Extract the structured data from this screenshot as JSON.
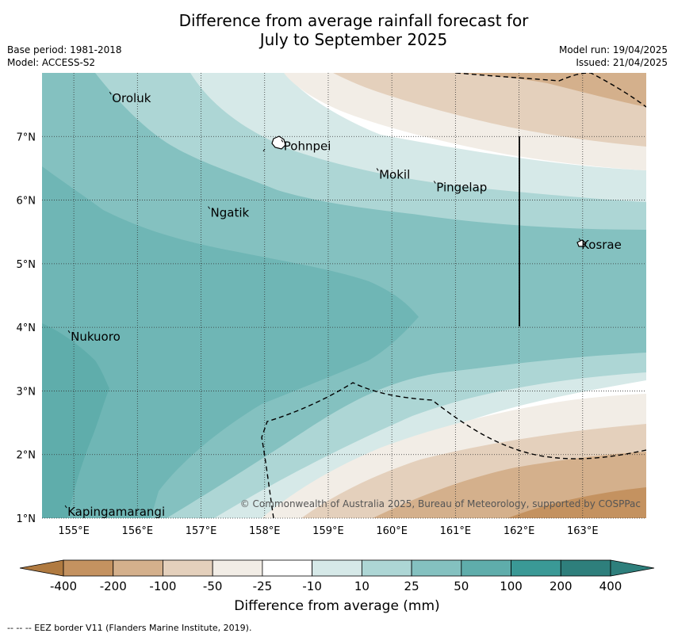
{
  "header": {
    "title_line1": "Difference from average rainfall forecast for",
    "title_line2": "July to September 2025",
    "base_period": "Base period: 1981-2018",
    "model": "Model: ACCESS-S2",
    "model_run": "Model run: 19/04/2025",
    "issued": "Issued: 21/04/2025"
  },
  "map": {
    "lon_ticks": [
      "155°E",
      "156°E",
      "157°E",
      "158°E",
      "159°E",
      "160°E",
      "161°E",
      "162°E",
      "163°E"
    ],
    "lat_ticks": [
      "1°N",
      "2°N",
      "3°N",
      "4°N",
      "5°N",
      "6°N",
      "7°N"
    ],
    "places": [
      {
        "name": "Oroluk",
        "lon": 155.6,
        "lat": 7.6
      },
      {
        "name": "Pohnpei",
        "lon": 158.3,
        "lat": 6.85
      },
      {
        "name": "Mokil",
        "lon": 159.8,
        "lat": 6.4
      },
      {
        "name": "Pingelap",
        "lon": 160.7,
        "lat": 6.2
      },
      {
        "name": "Ngatik",
        "lon": 157.15,
        "lat": 5.8
      },
      {
        "name": "Kosrae",
        "lon": 162.98,
        "lat": 5.3
      },
      {
        "name": "Nukuoro",
        "lon": 154.95,
        "lat": 3.85
      },
      {
        "name": "Kapingamarangi",
        "lon": 154.9,
        "lat": 1.1
      }
    ],
    "copyright": "© Commonwealth of Australia 2025, Bureau of Meteorology, supported by COSPPac"
  },
  "colorbar": {
    "ticks": [
      "-400",
      "-200",
      "-100",
      "-50",
      "-25",
      "-10",
      "10",
      "25",
      "50",
      "100",
      "200",
      "400"
    ],
    "colors": [
      "#b07a40",
      "#c49260",
      "#d4b08c",
      "#e4d0bc",
      "#f2ede6",
      "#ffffff",
      "#d6e9e8",
      "#add6d5",
      "#84c1c0",
      "#5fadab",
      "#3a9996",
      "#2e7f7c"
    ],
    "label": "Difference from average (mm)"
  },
  "footer": {
    "eez_note": "--  --  -- EEZ border V11 (Flanders Marine Institute, 2019)."
  }
}
